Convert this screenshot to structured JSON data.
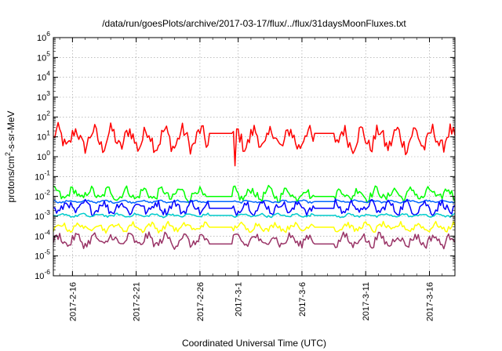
{
  "chart_data": {
    "type": "line",
    "title": "/data/run/goesPlots/archive/2017-03-17/flux/../flux/31daysMoonFluxes.txt",
    "xlabel": "Coordinated Universal Time (UTC)",
    "ylabel": "protons/cm²-s-sr-MeV",
    "ylabel_parts": {
      "main": "protons/cm",
      "sup": "2",
      "rest": "-s-sr-MeV"
    },
    "y_scale": "log",
    "ylim": [
      1e-06,
      1000000.0
    ],
    "y_ticks": [
      {
        "value": 1e-06,
        "base": "10",
        "exp": "-6"
      },
      {
        "value": 1e-05,
        "base": "10",
        "exp": "-5"
      },
      {
        "value": 0.0001,
        "base": "10",
        "exp": "-4"
      },
      {
        "value": 0.001,
        "base": "10",
        "exp": "-3"
      },
      {
        "value": 0.01,
        "base": "10",
        "exp": "-2"
      },
      {
        "value": 0.1,
        "base": "10",
        "exp": "-1"
      },
      {
        "value": 1,
        "base": "10",
        "exp": "0"
      },
      {
        "value": 10,
        "base": "10",
        "exp": "1"
      },
      {
        "value": 100,
        "base": "10",
        "exp": "2"
      },
      {
        "value": 1000,
        "base": "10",
        "exp": "3"
      },
      {
        "value": 10000,
        "base": "10",
        "exp": "4"
      },
      {
        "value": 100000,
        "base": "10",
        "exp": "5"
      },
      {
        "value": 1000000,
        "base": "10",
        "exp": "6"
      }
    ],
    "xlim": [
      "2017-02-14T12:00",
      "2017-03-18T00:00"
    ],
    "x_ticks": [
      "2017-2-16",
      "2017-2-21",
      "2017-2-26",
      "2017-3-1",
      "2017-3-6",
      "2017-3-11",
      "2017-3-16"
    ],
    "x_tick_dates": [
      "2017-02-16",
      "2017-02-21",
      "2017-02-26",
      "2017-03-01",
      "2017-03-06",
      "2017-03-11",
      "2017-03-16"
    ],
    "grid": true,
    "data_gaps": [
      [
        "2017-02-26T18:00",
        "2017-02-28T12:00"
      ],
      [
        "2017-03-07T00:00",
        "2017-03-08T12:00"
      ]
    ],
    "series": [
      {
        "color": "#ff0000",
        "center": 8,
        "spread_decades": 0.55,
        "dip_date": "2017-02-28T18:00",
        "dip_value": 0.35,
        "gap_value": 15
      },
      {
        "color": "#00ff00",
        "center": 0.013,
        "spread_decades": 0.3,
        "gap_value": 0.01
      },
      {
        "color": "#0066ff",
        "center": 0.0055,
        "spread_decades": 0.06,
        "gap_value": 0.0055
      },
      {
        "color": "#0000ff",
        "center": 0.0028,
        "spread_decades": 0.3,
        "gap_value": 0.0025
      },
      {
        "color": "#00cccc",
        "center": 0.0011,
        "spread_decades": 0.08,
        "gap_value": 0.0011
      },
      {
        "color": "#ffff00",
        "center": 0.00028,
        "spread_decades": 0.2,
        "gap_value": 0.00028
      },
      {
        "color": "#993366",
        "center": 6e-05,
        "spread_decades": 0.3,
        "gap_value": 4e-05
      }
    ]
  }
}
